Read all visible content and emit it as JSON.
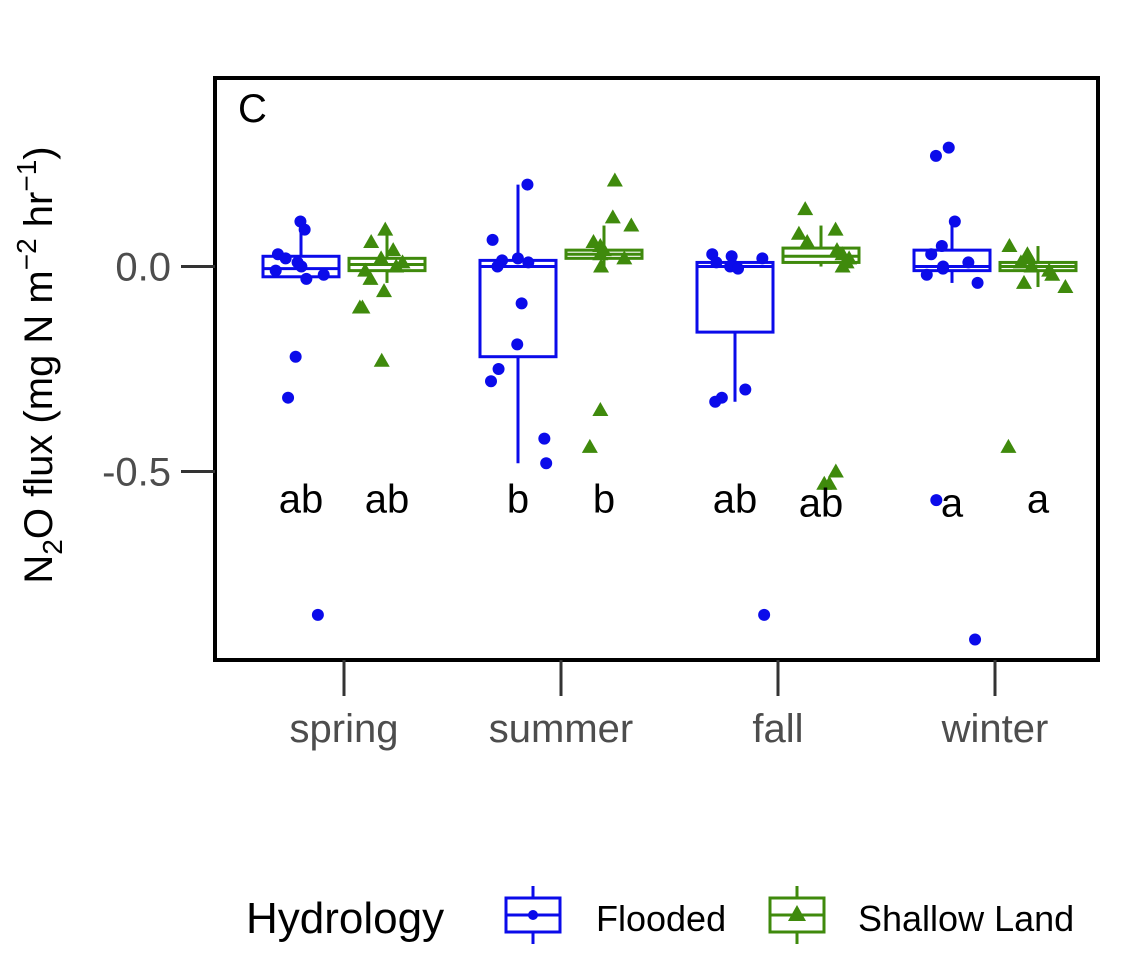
{
  "chart_data": {
    "type": "box-jitter",
    "panel_label": "C",
    "ylabel": {
      "base": "N",
      "sub": "2",
      "rest": "O flux (mg N m",
      "sup1": "−2",
      "mid": " hr",
      "sup2": "−1",
      "close": ")"
    },
    "xlabel": "",
    "ylim": [
      -0.96,
      0.46
    ],
    "y_ticks": [
      0.0,
      -0.5
    ],
    "y_tick_labels": [
      "0.0",
      "-0.5"
    ],
    "categories": [
      "spring",
      "summer",
      "fall",
      "winter"
    ],
    "legend": {
      "title": "Hydrology",
      "position": "bottom",
      "entries": [
        "Flooded",
        "Shallow Land"
      ]
    },
    "colors": {
      "Flooded": "#0b0bea",
      "Shallow Land": "#3f8a0c"
    },
    "series": [
      {
        "name": "Flooded",
        "marker": "circle",
        "boxes": [
          {
            "category": "spring",
            "q1": -0.025,
            "median": -0.005,
            "q3": 0.025,
            "whisker_low": -0.025,
            "whisker_high": 0.1,
            "points": [
              0.11,
              0.09,
              0.03,
              0.02,
              0.01,
              0.0,
              -0.01,
              -0.02,
              -0.03,
              -0.22,
              -0.32,
              -0.85
            ]
          },
          {
            "category": "summer",
            "q1": -0.22,
            "median": 0.0,
            "q3": 0.015,
            "whisker_low": -0.48,
            "whisker_high": 0.2,
            "points": [
              0.2,
              0.065,
              0.02,
              0.015,
              0.01,
              0.0,
              -0.09,
              -0.19,
              -0.25,
              -0.28,
              -0.42,
              -0.48
            ]
          },
          {
            "category": "fall",
            "q1": -0.16,
            "median": 0.0,
            "q3": 0.01,
            "whisker_low": -0.33,
            "whisker_high": 0.03,
            "points": [
              0.03,
              0.025,
              0.02,
              0.01,
              0.0,
              -0.005,
              -0.3,
              -0.32,
              -0.33,
              -0.85
            ]
          },
          {
            "category": "winter",
            "q1": -0.01,
            "median": 0.0,
            "q3": 0.04,
            "whisker_low": -0.04,
            "whisker_high": 0.11,
            "points": [
              0.29,
              0.27,
              0.11,
              0.05,
              0.03,
              0.01,
              0.0,
              -0.005,
              -0.02,
              -0.04,
              -0.57,
              -0.91
            ]
          }
        ]
      },
      {
        "name": "Shallow Land",
        "marker": "triangle",
        "boxes": [
          {
            "category": "spring",
            "q1": -0.01,
            "median": 0.005,
            "q3": 0.02,
            "whisker_low": -0.04,
            "whisker_high": 0.08,
            "points": [
              0.09,
              0.06,
              0.04,
              0.02,
              0.01,
              0.0,
              -0.01,
              -0.03,
              -0.06,
              -0.1,
              -0.1,
              -0.23
            ]
          },
          {
            "category": "summer",
            "q1": 0.02,
            "median": 0.03,
            "q3": 0.04,
            "whisker_low": 0.0,
            "whisker_high": 0.1,
            "points": [
              0.21,
              0.12,
              0.1,
              0.06,
              0.05,
              0.04,
              0.03,
              0.02,
              0.0,
              -0.35,
              -0.44
            ]
          },
          {
            "category": "fall",
            "q1": 0.01,
            "median": 0.025,
            "q3": 0.045,
            "whisker_low": 0.0,
            "whisker_high": 0.1,
            "points": [
              0.14,
              0.09,
              0.08,
              0.06,
              0.04,
              0.03,
              0.02,
              0.01,
              0.0,
              -0.5,
              -0.53,
              -0.53
            ]
          },
          {
            "category": "winter",
            "q1": -0.01,
            "median": 0.0,
            "q3": 0.01,
            "whisker_low": -0.05,
            "whisker_high": 0.05,
            "points": [
              0.05,
              0.03,
              0.02,
              0.01,
              0.0,
              -0.01,
              -0.02,
              -0.04,
              -0.05,
              -0.44
            ]
          }
        ]
      }
    ],
    "annotations": [
      {
        "category": "spring",
        "series": "Flooded",
        "text": "ab",
        "y": -0.6
      },
      {
        "category": "spring",
        "series": "Shallow Land",
        "text": "ab",
        "y": -0.6
      },
      {
        "category": "summer",
        "series": "Flooded",
        "text": "b",
        "y": -0.6
      },
      {
        "category": "summer",
        "series": "Shallow Land",
        "text": "b",
        "y": -0.6
      },
      {
        "category": "fall",
        "series": "Flooded",
        "text": "ab",
        "y": -0.6
      },
      {
        "category": "fall",
        "series": "Shallow Land",
        "text": "ab",
        "y": -0.61
      },
      {
        "category": "winter",
        "series": "Flooded",
        "text": "a",
        "y": -0.61
      },
      {
        "category": "winter",
        "series": "Shallow Land",
        "text": "a",
        "y": -0.6
      }
    ]
  }
}
